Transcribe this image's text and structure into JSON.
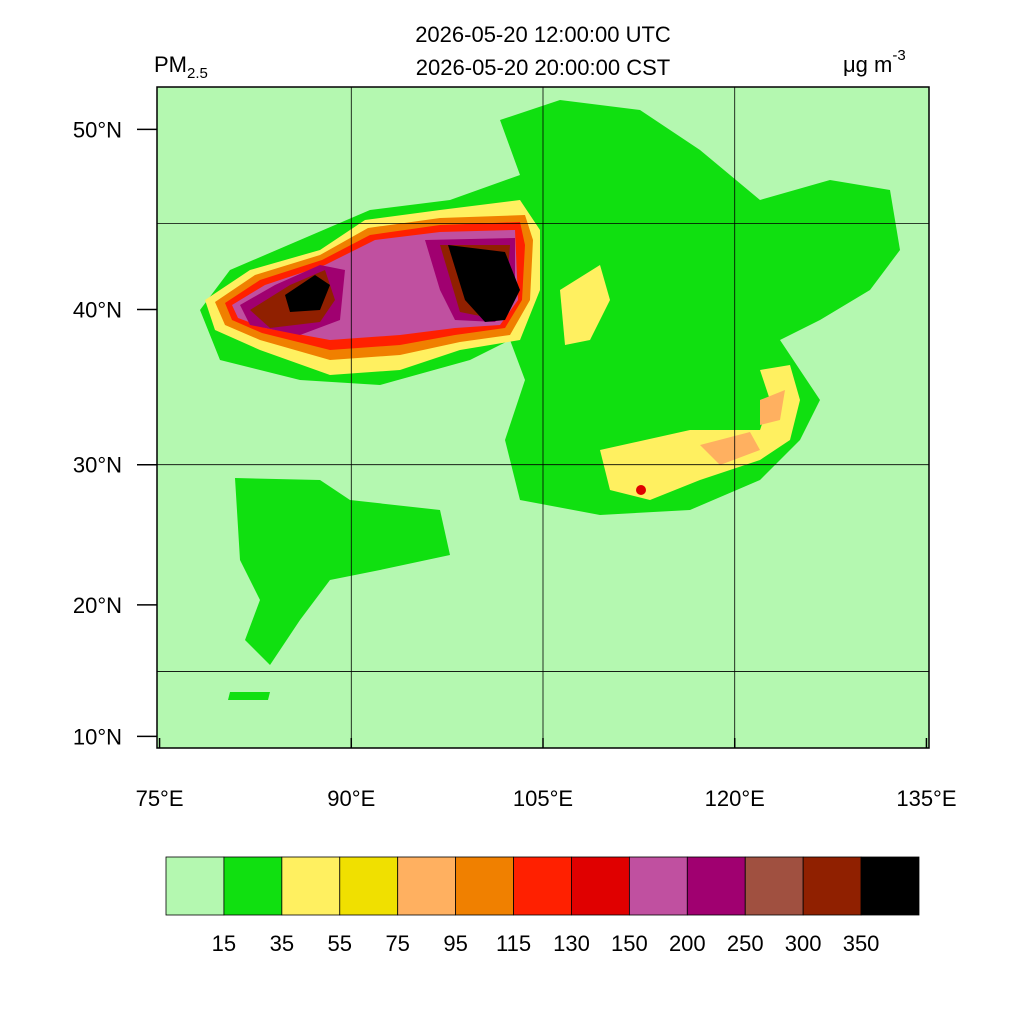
{
  "map": {
    "title": [
      "2026-05-20 12:00:00 UTC",
      "2026-05-20 20:00:00 CST"
    ],
    "variable": {
      "text": "PM",
      "subscript": "2.5"
    },
    "units": {
      "text": "μg m",
      "superscript": "-3"
    },
    "projection": "mercator",
    "xlim": [
      74.8,
      135.2
    ],
    "ylim": [
      9.1,
      52.1
    ],
    "xticks": [
      {
        "value": 75,
        "label": "75°E"
      },
      {
        "value": 90,
        "label": "90°E"
      },
      {
        "value": 105,
        "label": "105°E"
      },
      {
        "value": 120,
        "label": "120°E"
      },
      {
        "value": 135,
        "label": "135°E"
      }
    ],
    "yticks": [
      {
        "value": 10,
        "label": "10°N"
      },
      {
        "value": 20,
        "label": "20°N"
      },
      {
        "value": 30,
        "label": "30°N"
      },
      {
        "value": 40,
        "label": "40°N"
      },
      {
        "value": 50,
        "label": "50°N"
      }
    ],
    "grid_lon": [
      90,
      105,
      120
    ],
    "grid_lat": [
      15,
      30,
      45
    ],
    "colorbar": {
      "colors": [
        "#b4f8b0",
        "#10e010",
        "#fff060",
        "#f0e000",
        "#ffb060",
        "#f08000",
        "#ff2000",
        "#e00000",
        "#c050a0",
        "#a00070",
        "#a05040",
        "#902000",
        "#000000"
      ],
      "levels": [
        15,
        35,
        55,
        75,
        95,
        115,
        130,
        150,
        200,
        250,
        300,
        350
      ]
    }
  }
}
